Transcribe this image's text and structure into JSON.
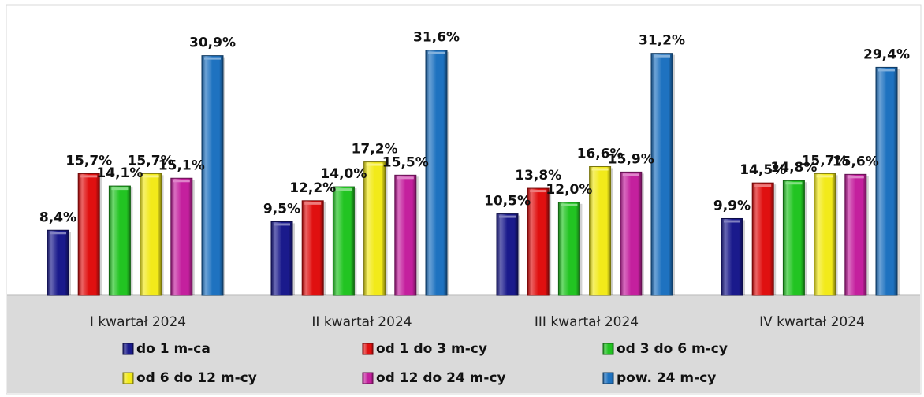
{
  "chart_data": {
    "type": "bar",
    "title": "",
    "xlabel": "",
    "ylabel": "",
    "ylim": [
      0,
      34
    ],
    "grid": false,
    "legend_position": "bottom",
    "categories": [
      "I kwartał 2024",
      "II kwartał 2024",
      "III kwartał 2024",
      "IV kwartał 2024"
    ],
    "series": [
      {
        "name": "do 1 m-ca",
        "color": "#1a1a8c",
        "values": [
          8.4,
          9.5,
          10.5,
          9.9
        ],
        "labels": [
          "8,4%",
          "9,5%",
          "10,5%",
          "9,9%"
        ]
      },
      {
        "name": "od 1 do 3 m-cy",
        "color": "#e01010",
        "values": [
          15.7,
          12.2,
          13.8,
          14.5
        ],
        "labels": [
          "15,7%",
          "12,2%",
          "13,8%",
          "14,5%"
        ]
      },
      {
        "name": "od 3 do 6 m-cy",
        "color": "#22c422",
        "values": [
          14.1,
          14.0,
          12.0,
          14.8
        ],
        "labels": [
          "14,1%",
          "14,0%",
          "12,0%",
          "14,8%"
        ]
      },
      {
        "name": "od 6 do 12 m-cy",
        "color": "#f2ea1a",
        "values": [
          15.7,
          17.2,
          16.6,
          15.7
        ],
        "labels": [
          "15,7%",
          "17,2%",
          "16,6%",
          "15,7%"
        ]
      },
      {
        "name": "od 12 do 24 m-cy",
        "color": "#c4209e",
        "values": [
          15.1,
          15.5,
          15.9,
          15.6
        ],
        "labels": [
          "15,1%",
          "15,5%",
          "15,9%",
          "15,6%"
        ]
      },
      {
        "name": "pow. 24 m-cy",
        "color": "#1e72c0",
        "values": [
          30.9,
          31.6,
          31.2,
          29.4
        ],
        "labels": [
          "30,9%",
          "31,6%",
          "31,2%",
          "29,4%"
        ]
      }
    ]
  }
}
